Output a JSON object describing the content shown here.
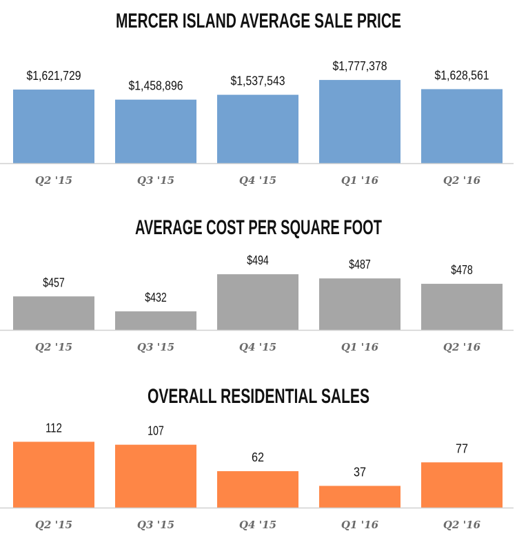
{
  "chart_data": [
    {
      "type": "bar",
      "title": "MERCER ISLAND AVERAGE SALE PRICE",
      "categories": [
        "Q2 '15",
        "Q3 '15",
        "Q4 '15",
        "Q1 '16",
        "Q2 '16"
      ],
      "values": [
        1621729,
        1458896,
        1537543,
        1777378,
        1628561
      ],
      "labels": [
        "$1,621,729",
        "$1,458,896",
        "$1,537,543",
        "$1,777,378",
        "$1,628,561"
      ],
      "color": "#73a2d2",
      "ylim": [
        430000,
        1990000
      ],
      "grid": false
    },
    {
      "type": "bar",
      "title": "AVERAGE COST PER SQUARE FOOT",
      "categories": [
        "Q2 '15",
        "Q3 '15",
        "Q4 '15",
        "Q1 '16",
        "Q2 '16"
      ],
      "values": [
        457,
        432,
        494,
        487,
        478
      ],
      "labels": [
        "$457",
        "$432",
        "$494",
        "$487",
        "$478"
      ],
      "color": "#a6a6a6",
      "ylim": [
        401,
        562
      ],
      "grid": false
    },
    {
      "type": "bar",
      "title": "OVERALL RESIDENTIAL SALES",
      "categories": [
        "Q2 '15",
        "Q3 '15",
        "Q4 '15",
        "Q1 '16",
        "Q2 '16"
      ],
      "values": [
        112,
        107,
        62,
        37,
        77
      ],
      "labels": [
        "112",
        "107",
        "62",
        "37",
        "77"
      ],
      "color": "#fe8646",
      "ylim": [
        0,
        164
      ],
      "grid": false
    }
  ]
}
